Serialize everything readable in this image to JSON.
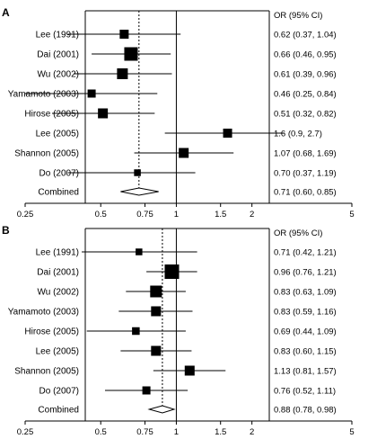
{
  "chart_data": [
    {
      "type": "forest",
      "panel": "A",
      "or_header": "OR (95% CI)",
      "x_scale": "log",
      "xlim": [
        0.25,
        5
      ],
      "x_ticks": [
        0.25,
        0.5,
        0.75,
        1,
        1.5,
        2,
        5
      ],
      "x_tick_labels": [
        "0.25",
        "0.5",
        "0.75",
        "1",
        "1.5",
        "2",
        "5"
      ],
      "reference_line": 1,
      "pooled_dashed_line": 0.71,
      "studies": [
        {
          "name": "Lee (1991)",
          "or": 0.62,
          "lo": 0.37,
          "hi": 1.04,
          "label": "0.62 (0.37, 1.04)",
          "weight": 1.0
        },
        {
          "name": "Dai (2001)",
          "or": 0.66,
          "lo": 0.46,
          "hi": 0.95,
          "label": "0.66 (0.46, 0.95)",
          "weight": 1.5
        },
        {
          "name": "Wu (2002)",
          "or": 0.61,
          "lo": 0.39,
          "hi": 0.96,
          "label": "0.61 (0.39, 0.96)",
          "weight": 1.2
        },
        {
          "name": "Yamamoto (2003)",
          "or": 0.46,
          "lo": 0.25,
          "hi": 0.84,
          "label": "0.46 (0.25, 0.84)",
          "weight": 0.9
        },
        {
          "name": "Hirose (2005)",
          "or": 0.51,
          "lo": 0.32,
          "hi": 0.82,
          "label": "0.51 (0.32, 0.82)",
          "weight": 1.1
        },
        {
          "name": "Lee (2005)",
          "or": 1.6,
          "lo": 0.9,
          "hi": 2.7,
          "label": "1.6 (0.9, 2.7)",
          "weight": 1.0
        },
        {
          "name": "Shannon (2005)",
          "or": 1.07,
          "lo": 0.68,
          "hi": 1.69,
          "label": "1.07 (0.68, 1.69)",
          "weight": 1.1
        },
        {
          "name": "Do (2007)",
          "or": 0.7,
          "lo": 0.37,
          "hi": 1.19,
          "label": "0.70 (0.37, 1.19)",
          "weight": 0.75
        }
      ],
      "combined": {
        "name": "Combined",
        "or": 0.71,
        "lo": 0.6,
        "hi": 0.85,
        "label": "0.71 (0.60, 0.85)"
      }
    },
    {
      "type": "forest",
      "panel": "B",
      "or_header": "OR (95% CI)",
      "x_scale": "log",
      "xlim": [
        0.25,
        5
      ],
      "x_ticks": [
        0.25,
        0.5,
        0.75,
        1,
        1.5,
        2,
        5
      ],
      "x_tick_labels": [
        "0.25",
        "0.5",
        "0.75",
        "1",
        "1.5",
        "2",
        "5"
      ],
      "reference_line": 1,
      "pooled_dashed_line": 0.88,
      "studies": [
        {
          "name": "Lee (1991)",
          "or": 0.71,
          "lo": 0.42,
          "hi": 1.21,
          "label": "0.71 (0.42, 1.21)",
          "weight": 0.75
        },
        {
          "name": "Dai (2001)",
          "or": 0.96,
          "lo": 0.76,
          "hi": 1.21,
          "label": "0.96 (0.76, 1.21)",
          "weight": 1.6
        },
        {
          "name": "Wu (2002)",
          "or": 0.83,
          "lo": 0.63,
          "hi": 1.09,
          "label": "0.83 (0.63, 1.09)",
          "weight": 1.3
        },
        {
          "name": "Yamamoto (2003)",
          "or": 0.83,
          "lo": 0.59,
          "hi": 1.16,
          "label": "0.83 (0.59, 1.16)",
          "weight": 1.1
        },
        {
          "name": "Hirose (2005)",
          "or": 0.69,
          "lo": 0.44,
          "hi": 1.09,
          "label": "0.69 (0.44, 1.09)",
          "weight": 0.85
        },
        {
          "name": "Lee (2005)",
          "or": 0.83,
          "lo": 0.6,
          "hi": 1.15,
          "label": "0.83 (0.60, 1.15)",
          "weight": 1.1
        },
        {
          "name": "Shannon (2005)",
          "or": 1.13,
          "lo": 0.81,
          "hi": 1.57,
          "label": "1.13 (0.81, 1.57)",
          "weight": 1.1
        },
        {
          "name": "Do (2007)",
          "or": 0.76,
          "lo": 0.52,
          "hi": 1.11,
          "label": "0.76 (0.52, 1.11)",
          "weight": 0.9
        }
      ],
      "combined": {
        "name": "Combined",
        "or": 0.88,
        "lo": 0.78,
        "hi": 0.98,
        "label": "0.88 (0.78, 0.98)"
      }
    }
  ]
}
